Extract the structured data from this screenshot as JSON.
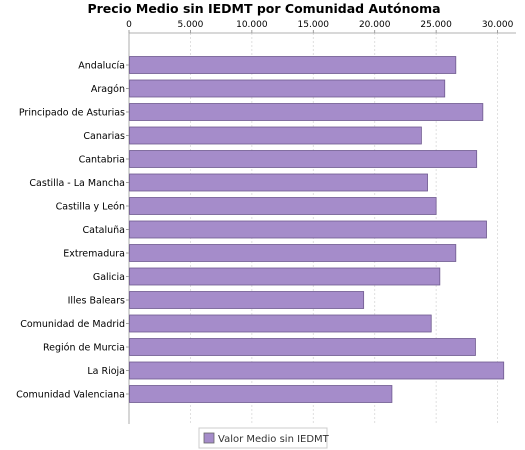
{
  "chart_data": {
    "type": "bar",
    "orientation": "horizontal",
    "title": "Precio Medio sin IEDMT por Comunidad Autónoma",
    "xlim": [
      0,
      31500
    ],
    "xticks": [
      0,
      5000,
      10000,
      15000,
      20000,
      25000,
      30000
    ],
    "xtick_labels": [
      "0",
      "5.000",
      "10.000",
      "15.000",
      "20.000",
      "25.000",
      "30.000"
    ],
    "tick_position": "top",
    "grid": true,
    "legend_position": "bottom",
    "categories": [
      "Andalucía",
      "Aragón",
      "Principado de Asturias",
      "Canarias",
      "Cantabria",
      "Castilla - La Mancha",
      "Castilla y León",
      "Cataluña",
      "Extremadura",
      "Galicia",
      "Illes Balears",
      "Comunidad de Madrid",
      "Región de Murcia",
      "La Rioja",
      "Comunidad Valenciana"
    ],
    "series": [
      {
        "name": "Valor Medio sin IEDMT",
        "color": "#a58cca",
        "values": [
          26600,
          25700,
          28800,
          23800,
          28300,
          24300,
          25000,
          29100,
          26600,
          25300,
          19100,
          24600,
          28200,
          30500,
          21400
        ]
      }
    ]
  }
}
